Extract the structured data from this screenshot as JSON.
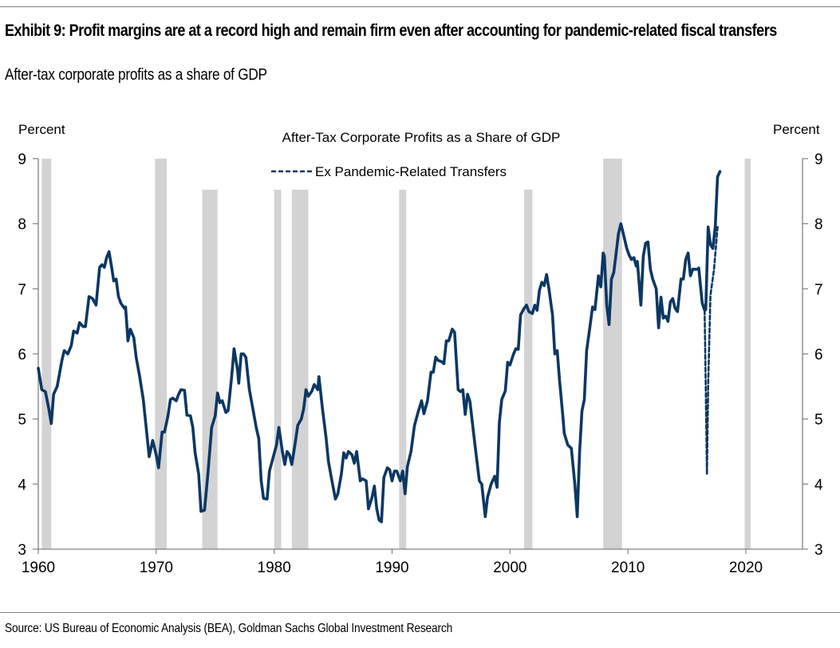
{
  "header": {
    "title": "Exhibit 9: Profit margins are at a record high and remain firm even after accounting for pandemic-related fiscal transfers",
    "subtitle": "After-tax corporate profits as a share of GDP"
  },
  "footer": {
    "source": "Source: US Bureau of Economic Analysis (BEA), Goldman Sachs Global Investment Research"
  },
  "chart_data": {
    "type": "line",
    "title": "",
    "xlabel": "",
    "ylabel_left": "Percent",
    "ylabel_right": "Percent",
    "xlim": [
      1960,
      2022.8
    ],
    "ylim": [
      3,
      9
    ],
    "x_ticks": [
      1960,
      1970,
      1980,
      1990,
      2000,
      2010,
      2020
    ],
    "y_ticks": [
      3,
      4,
      5,
      6,
      7,
      8,
      9
    ],
    "grid": false,
    "legend_placement": "top-center",
    "colors": {
      "line": "#0b3763",
      "recession": "#d3d3d3",
      "axis": "#808080"
    },
    "recessions": [
      {
        "start": 1960.3,
        "end": 1961.1,
        "top": 9
      },
      {
        "start": 1969.9,
        "end": 1970.9,
        "top": 9
      },
      {
        "start": 1973.9,
        "end": 1975.2,
        "top": 8.5
      },
      {
        "start": 1980.0,
        "end": 1980.6,
        "top": 8.5
      },
      {
        "start": 1981.5,
        "end": 1982.9,
        "top": 8.5
      },
      {
        "start": 1990.6,
        "end": 1991.2,
        "top": 8.5
      },
      {
        "start": 2001.2,
        "end": 2001.9,
        "top": 8.5
      },
      {
        "start": 2007.9,
        "end": 2009.5,
        "top": 9
      },
      {
        "start": 2019.9,
        "end": 2020.4,
        "top": 9
      }
    ],
    "series": [
      {
        "name": "After-Tax Corporate Profits as a Share of GDP",
        "style": "solid",
        "points": [
          [
            1960.0,
            5.78
          ],
          [
            1960.3,
            5.45
          ],
          [
            1960.6,
            5.42
          ],
          [
            1960.9,
            5.15
          ],
          [
            1961.1,
            4.93
          ],
          [
            1961.3,
            5.38
          ],
          [
            1961.6,
            5.5
          ],
          [
            1962.0,
            5.9
          ],
          [
            1962.2,
            6.05
          ],
          [
            1962.5,
            6.0
          ],
          [
            1962.8,
            6.13
          ],
          [
            1963.0,
            6.35
          ],
          [
            1963.3,
            6.32
          ],
          [
            1963.5,
            6.48
          ],
          [
            1963.8,
            6.42
          ],
          [
            1964.0,
            6.42
          ],
          [
            1964.3,
            6.88
          ],
          [
            1964.6,
            6.85
          ],
          [
            1964.9,
            6.75
          ],
          [
            1965.2,
            7.33
          ],
          [
            1965.4,
            7.37
          ],
          [
            1965.6,
            7.33
          ],
          [
            1965.8,
            7.48
          ],
          [
            1966.0,
            7.57
          ],
          [
            1966.2,
            7.35
          ],
          [
            1966.4,
            7.12
          ],
          [
            1966.6,
            7.15
          ],
          [
            1966.8,
            6.88
          ],
          [
            1967.0,
            6.78
          ],
          [
            1967.3,
            6.7
          ],
          [
            1967.4,
            6.72
          ],
          [
            1967.6,
            6.2
          ],
          [
            1967.8,
            6.38
          ],
          [
            1968.1,
            6.25
          ],
          [
            1968.3,
            5.95
          ],
          [
            1968.6,
            5.65
          ],
          [
            1968.9,
            5.3
          ],
          [
            1969.2,
            4.78
          ],
          [
            1969.4,
            4.42
          ],
          [
            1969.7,
            4.67
          ],
          [
            1970.0,
            4.45
          ],
          [
            1970.2,
            4.25
          ],
          [
            1970.5,
            4.8
          ],
          [
            1970.7,
            4.8
          ],
          [
            1971.0,
            5.05
          ],
          [
            1971.2,
            5.3
          ],
          [
            1971.4,
            5.32
          ],
          [
            1971.7,
            5.28
          ],
          [
            1971.9,
            5.38
          ],
          [
            1972.1,
            5.45
          ],
          [
            1972.4,
            5.44
          ],
          [
            1972.6,
            5.06
          ],
          [
            1972.9,
            5.05
          ],
          [
            1973.1,
            4.87
          ],
          [
            1973.3,
            4.48
          ],
          [
            1973.6,
            4.15
          ],
          [
            1973.8,
            3.58
          ],
          [
            1974.1,
            3.6
          ],
          [
            1974.4,
            4.2
          ],
          [
            1974.7,
            4.87
          ],
          [
            1975.0,
            5.05
          ],
          [
            1975.2,
            5.4
          ],
          [
            1975.4,
            5.25
          ],
          [
            1975.6,
            5.28
          ],
          [
            1975.9,
            5.1
          ],
          [
            1976.1,
            5.13
          ],
          [
            1976.4,
            5.65
          ],
          [
            1976.6,
            6.08
          ],
          [
            1976.9,
            5.75
          ],
          [
            1977.0,
            5.55
          ],
          [
            1977.2,
            6.0
          ],
          [
            1977.4,
            6.0
          ],
          [
            1977.6,
            5.95
          ],
          [
            1977.9,
            5.45
          ],
          [
            1978.2,
            5.15
          ],
          [
            1978.5,
            4.85
          ],
          [
            1978.7,
            4.7
          ],
          [
            1978.9,
            4.05
          ],
          [
            1979.1,
            3.78
          ],
          [
            1979.4,
            3.77
          ],
          [
            1979.6,
            4.2
          ],
          [
            1979.9,
            4.4
          ],
          [
            1980.2,
            4.6
          ],
          [
            1980.4,
            4.87
          ],
          [
            1980.7,
            4.5
          ],
          [
            1980.9,
            4.3
          ],
          [
            1981.1,
            4.5
          ],
          [
            1981.3,
            4.45
          ],
          [
            1981.5,
            4.3
          ],
          [
            1981.8,
            4.65
          ],
          [
            1982.0,
            4.9
          ],
          [
            1982.3,
            5.0
          ],
          [
            1982.5,
            5.15
          ],
          [
            1982.7,
            5.45
          ],
          [
            1982.9,
            5.35
          ],
          [
            1983.2,
            5.43
          ],
          [
            1983.4,
            5.53
          ],
          [
            1983.7,
            5.45
          ],
          [
            1983.8,
            5.65
          ],
          [
            1984.1,
            5.15
          ],
          [
            1984.4,
            4.72
          ],
          [
            1984.6,
            4.35
          ],
          [
            1984.9,
            4.05
          ],
          [
            1985.2,
            3.77
          ],
          [
            1985.4,
            3.85
          ],
          [
            1985.7,
            4.15
          ],
          [
            1985.9,
            4.48
          ],
          [
            1986.1,
            4.4
          ],
          [
            1986.3,
            4.5
          ],
          [
            1986.6,
            4.45
          ],
          [
            1986.8,
            4.32
          ],
          [
            1987.0,
            4.5
          ],
          [
            1987.3,
            4.05
          ],
          [
            1987.5,
            4.08
          ],
          [
            1987.8,
            4.05
          ],
          [
            1988.0,
            3.62
          ],
          [
            1988.3,
            3.8
          ],
          [
            1988.5,
            3.97
          ],
          [
            1988.7,
            3.62
          ],
          [
            1988.9,
            3.45
          ],
          [
            1989.1,
            3.42
          ],
          [
            1989.3,
            4.1
          ],
          [
            1989.6,
            4.25
          ],
          [
            1989.8,
            4.22
          ],
          [
            1990.0,
            4.05
          ],
          [
            1990.2,
            4.2
          ],
          [
            1990.4,
            4.2
          ],
          [
            1990.7,
            4.05
          ],
          [
            1990.9,
            4.2
          ],
          [
            1991.1,
            3.85
          ],
          [
            1991.3,
            4.27
          ],
          [
            1991.6,
            4.5
          ],
          [
            1991.9,
            4.9
          ],
          [
            1992.2,
            5.1
          ],
          [
            1992.5,
            5.28
          ],
          [
            1992.7,
            5.08
          ],
          [
            1993.0,
            5.28
          ],
          [
            1993.3,
            5.72
          ],
          [
            1993.5,
            5.72
          ],
          [
            1993.7,
            5.95
          ],
          [
            1993.9,
            5.9
          ],
          [
            1994.2,
            5.88
          ],
          [
            1994.4,
            5.85
          ],
          [
            1994.6,
            6.2
          ],
          [
            1994.8,
            6.2
          ],
          [
            1995.1,
            6.38
          ],
          [
            1995.3,
            6.33
          ],
          [
            1995.6,
            5.45
          ],
          [
            1995.8,
            5.42
          ],
          [
            1996.0,
            5.45
          ],
          [
            1996.2,
            5.07
          ],
          [
            1996.4,
            5.38
          ],
          [
            1996.6,
            5.27
          ],
          [
            1996.9,
            4.8
          ],
          [
            1997.2,
            4.35
          ],
          [
            1997.4,
            4.05
          ],
          [
            1997.6,
            4.0
          ],
          [
            1997.9,
            3.5
          ],
          [
            1998.1,
            3.8
          ],
          [
            1998.4,
            4.0
          ],
          [
            1998.7,
            4.12
          ],
          [
            1998.9,
            3.95
          ],
          [
            1999.1,
            4.95
          ],
          [
            1999.3,
            5.3
          ],
          [
            1999.6,
            5.43
          ],
          [
            1999.8,
            5.87
          ],
          [
            2000.0,
            5.83
          ],
          [
            2000.3,
            6.0
          ],
          [
            2000.5,
            6.08
          ],
          [
            2000.7,
            6.07
          ],
          [
            2000.9,
            6.6
          ],
          [
            2001.2,
            6.7
          ],
          [
            2001.4,
            6.75
          ],
          [
            2001.6,
            6.65
          ],
          [
            2001.9,
            6.62
          ],
          [
            2002.1,
            6.75
          ],
          [
            2002.3,
            6.67
          ],
          [
            2002.5,
            6.98
          ],
          [
            2002.7,
            7.1
          ],
          [
            2002.9,
            7.05
          ],
          [
            2003.1,
            7.22
          ],
          [
            2003.3,
            7.0
          ],
          [
            2003.6,
            6.6
          ],
          [
            2003.8,
            6.0
          ],
          [
            2004.0,
            6.05
          ],
          [
            2004.2,
            5.6
          ],
          [
            2004.5,
            5.0
          ],
          [
            2004.6,
            4.78
          ],
          [
            2004.9,
            4.6
          ],
          [
            2005.2,
            4.55
          ],
          [
            2005.5,
            4.0
          ],
          [
            2005.7,
            3.5
          ],
          [
            2005.9,
            4.5
          ],
          [
            2006.1,
            5.12
          ],
          [
            2006.3,
            5.3
          ],
          [
            2006.5,
            6.05
          ],
          [
            2006.8,
            6.45
          ],
          [
            2007.0,
            6.72
          ],
          [
            2007.2,
            6.68
          ],
          [
            2007.5,
            7.2
          ],
          [
            2007.7,
            7.03
          ],
          [
            2007.9,
            7.55
          ],
          [
            2008.0,
            7.5
          ],
          [
            2008.2,
            6.75
          ],
          [
            2008.4,
            6.45
          ],
          [
            2008.6,
            7.15
          ],
          [
            2008.8,
            7.25
          ],
          [
            2009.0,
            7.55
          ],
          [
            2009.2,
            7.85
          ],
          [
            2009.4,
            8.0
          ],
          [
            2009.6,
            7.85
          ],
          [
            2009.9,
            7.62
          ],
          [
            2010.1,
            7.52
          ],
          [
            2010.3,
            7.45
          ],
          [
            2010.5,
            7.48
          ],
          [
            2010.7,
            7.35
          ],
          [
            2010.8,
            7.42
          ],
          [
            2011.1,
            6.75
          ],
          [
            2011.3,
            7.5
          ],
          [
            2011.5,
            7.7
          ],
          [
            2011.7,
            7.72
          ],
          [
            2011.9,
            7.3
          ],
          [
            2012.1,
            7.15
          ],
          [
            2012.4,
            7.0
          ],
          [
            2012.6,
            6.4
          ],
          [
            2012.8,
            6.87
          ],
          [
            2013.0,
            6.55
          ],
          [
            2013.2,
            6.58
          ],
          [
            2013.4,
            6.5
          ],
          [
            2013.6,
            6.8
          ],
          [
            2013.8,
            6.85
          ],
          [
            2014.0,
            6.7
          ],
          [
            2014.2,
            6.65
          ],
          [
            2014.5,
            7.15
          ],
          [
            2014.7,
            7.15
          ],
          [
            2014.9,
            7.45
          ],
          [
            2015.1,
            7.55
          ],
          [
            2015.3,
            7.2
          ],
          [
            2015.5,
            7.3
          ],
          [
            2015.7,
            7.3
          ],
          [
            2015.9,
            7.3
          ],
          [
            2016.0,
            7.32
          ],
          [
            2016.3,
            6.78
          ],
          [
            2016.5,
            6.67
          ],
          [
            2016.6,
            6.68
          ],
          [
            2016.8,
            7.95
          ],
          [
            2017.0,
            7.68
          ],
          [
            2017.2,
            7.62
          ],
          [
            2017.4,
            7.95
          ],
          [
            2017.6,
            8.72
          ],
          [
            2017.8,
            8.8
          ]
        ]
      },
      {
        "name": "Ex Pandemic-Related Transfers",
        "style": "dashed",
        "points": [
          [
            2016.5,
            6.67
          ],
          [
            2016.6,
            5.5
          ],
          [
            2016.7,
            4.15
          ],
          [
            2016.8,
            5.5
          ],
          [
            2017.0,
            6.9
          ],
          [
            2017.3,
            7.3
          ],
          [
            2017.6,
            7.95
          ]
        ]
      }
    ]
  }
}
